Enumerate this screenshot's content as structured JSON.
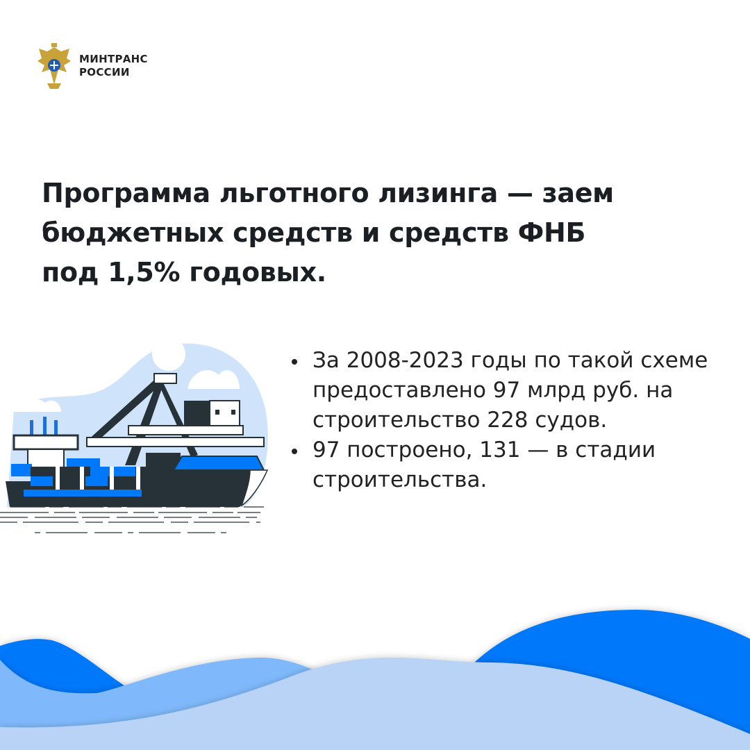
{
  "logo": {
    "line1": "МИНТРАНС",
    "line2": "РОССИИ",
    "emblem": "double-headed-eagle-emblem"
  },
  "title": {
    "lines": [
      "Программа льготного лизинга — заем",
      "бюджетных средств и средств ФНБ",
      "под 1,5% годовых."
    ]
  },
  "bullets": [
    "За 2008-2023 годы по такой схеме предоставлено 97 млрд руб. на строительство 228 судов.",
    "97 построено, 131 — в стадии строительства."
  ],
  "colors": {
    "accent": "#0078fa",
    "light_blue": "#7fb9fb",
    "pale_blue": "#b9d3f6",
    "sky": "#cfe3fb",
    "dark": "#263238"
  }
}
